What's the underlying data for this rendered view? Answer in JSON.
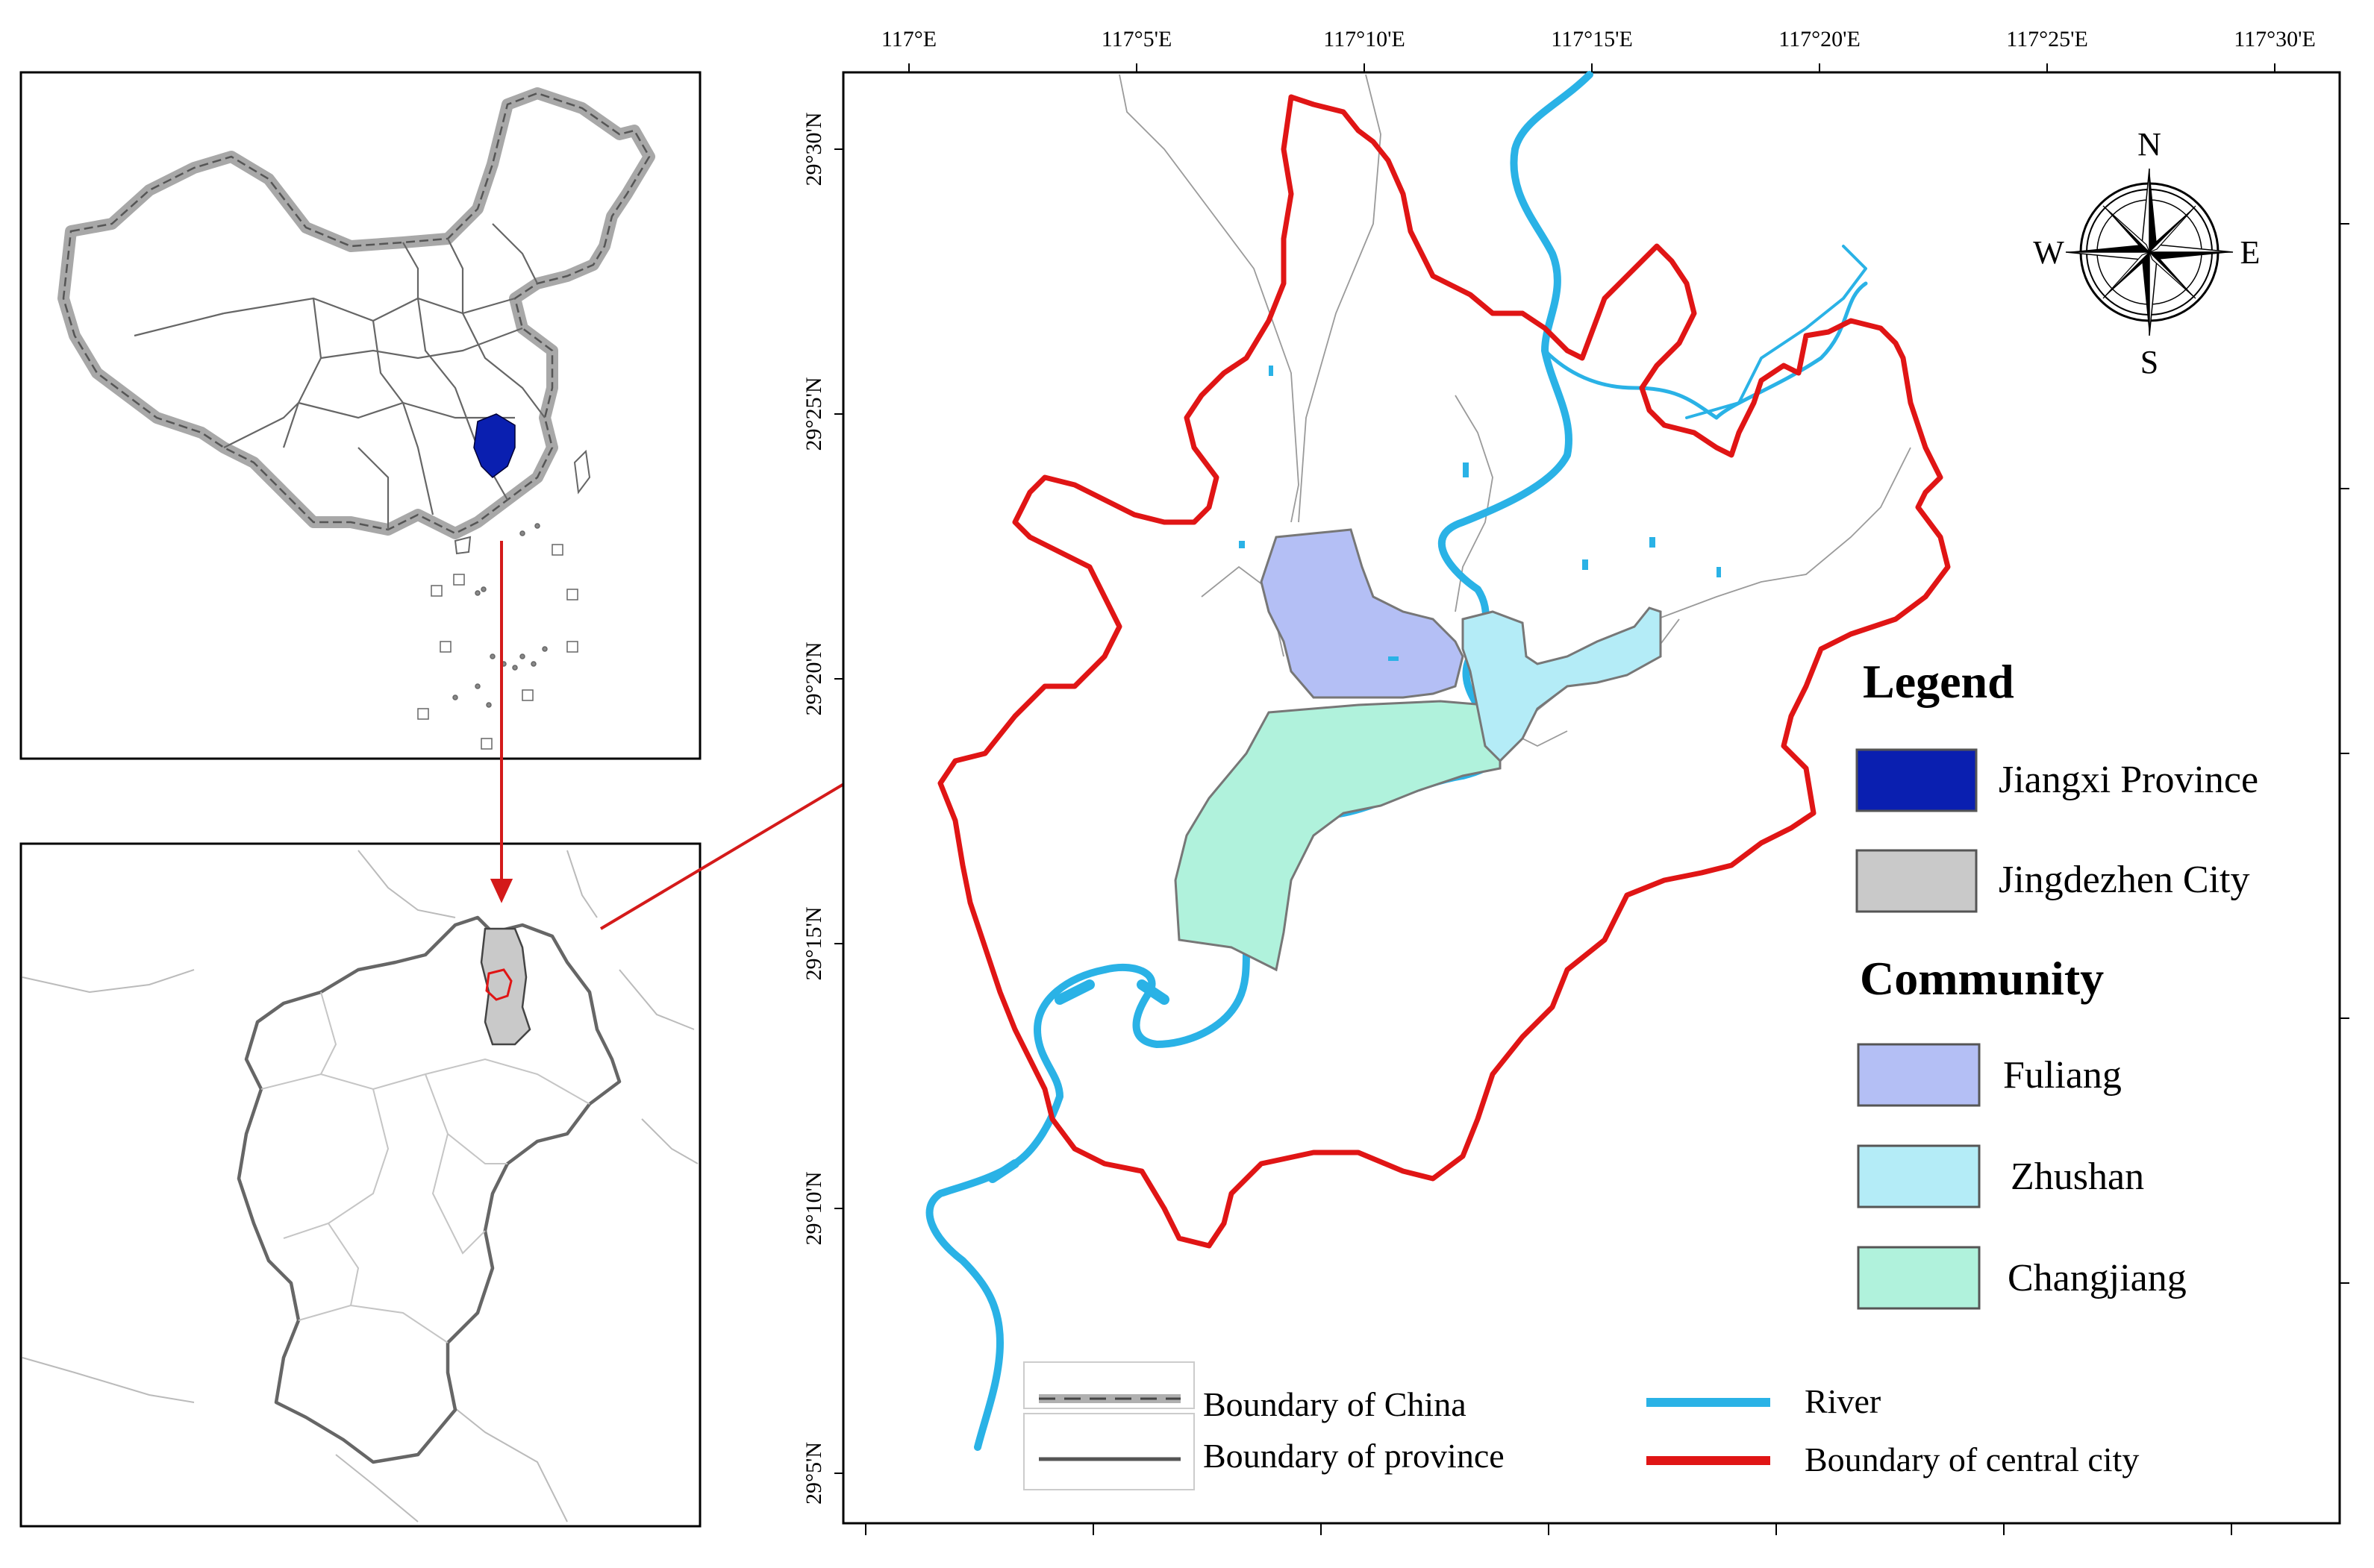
{
  "top_ticks": [
    "117°E",
    "117°5'E",
    "117°10'E",
    "117°15'E",
    "117°20'E",
    "117°25'E",
    "117°30'E"
  ],
  "left_ticks": [
    "29°30'N",
    "29°25'N",
    "29°20'N",
    "29°15'N",
    "29°10'N",
    "29°5'N"
  ],
  "compass": {
    "n": "N",
    "s": "S",
    "e": "E",
    "w": "W"
  },
  "legend": {
    "title": "Legend",
    "items": [
      {
        "label": "Jiangxi Province",
        "color": "#0a1fb0"
      },
      {
        "label": "Jingdezhen City",
        "color": "#c9c9c9"
      }
    ],
    "community_title": "Community",
    "communities": [
      {
        "label": "Fuliang",
        "color": "#b4bff5"
      },
      {
        "label": "Zhushan",
        "color": "#b4ecf7"
      },
      {
        "label": "Changjiang",
        "color": "#b0f2dc"
      }
    ]
  },
  "lines_legend": {
    "china": "Boundary of China",
    "province": "Boundary of province",
    "river": "River",
    "central": "Boundary of central city"
  },
  "colors": {
    "river": "#2ab2e6",
    "central_boundary": "#e01515",
    "arrow": "#d41a1a"
  }
}
